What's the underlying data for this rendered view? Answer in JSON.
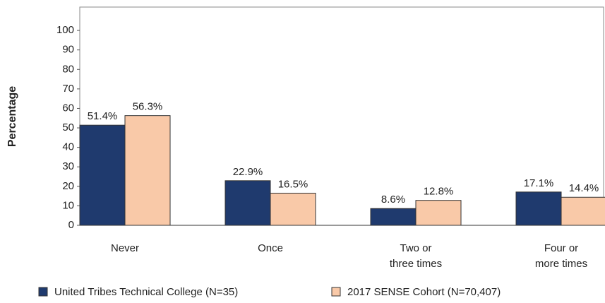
{
  "chart_data": {
    "type": "bar",
    "y_label": "Percentage",
    "categories": [
      "Never",
      "Once",
      "Two or\nthree times",
      "Four or\nmore times"
    ],
    "series": [
      {
        "name": "United Tribes Technical College (N=35)",
        "color": "#1f3a6e",
        "values": [
          51.4,
          22.9,
          8.6,
          17.1
        ],
        "value_labels": [
          "51.4%",
          "22.9%",
          "8.6%",
          "17.1%"
        ]
      },
      {
        "name": "2017 SENSE Cohort (N=70,407)",
        "color": "#f9c9a8",
        "values": [
          56.3,
          16.5,
          12.8,
          14.4
        ],
        "value_labels": [
          "56.3%",
          "16.5%",
          "12.8%",
          "14.4%"
        ]
      }
    ],
    "ylim": [
      0,
      112
    ],
    "yticks": [
      0,
      10,
      20,
      30,
      40,
      50,
      60,
      70,
      80,
      90,
      100
    ],
    "legend": "bottom"
  }
}
